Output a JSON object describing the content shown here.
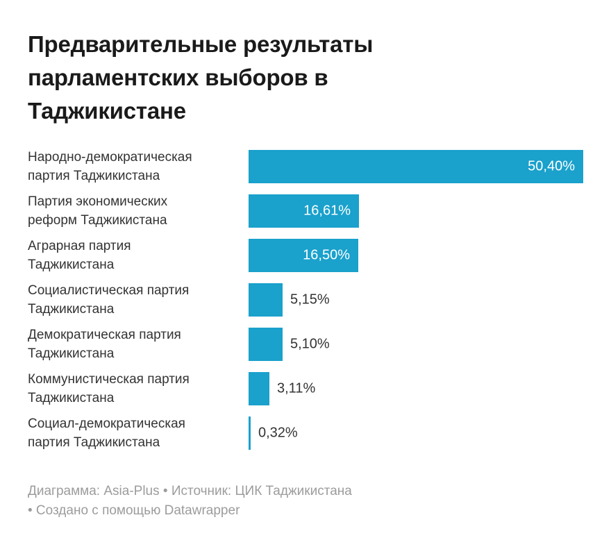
{
  "header": {
    "title_lines": [
      "Предварительные результаты",
      "парламентских выборов в",
      "Таджикистане"
    ]
  },
  "chart": {
    "rows": [
      {
        "name_lines": [
          "Народно-демократическая",
          "партия Таджикистана"
        ],
        "value_label": "50,40%",
        "label_inside": true
      },
      {
        "name_lines": [
          "Партия экономических",
          "реформ Таджикистана"
        ],
        "value_label": "16,61%",
        "label_inside": true
      },
      {
        "name_lines": [
          "Аграрная партия",
          "Таджикистана"
        ],
        "value_label": "16,50%",
        "label_inside": true
      },
      {
        "name_lines": [
          "Социалистическая партия",
          "Таджикистана"
        ],
        "value_label": "5,15%",
        "label_inside": false
      },
      {
        "name_lines": [
          "Демократическая партия",
          "Таджикистана"
        ],
        "value_label": "5,10%",
        "label_inside": false
      },
      {
        "name_lines": [
          "Коммунистическая партия",
          "Таджикистана"
        ],
        "value_label": "3,11%",
        "label_inside": false
      },
      {
        "name_lines": [
          "Социал-демократическая",
          "партия Таджикистана"
        ],
        "value_label": "0,32%",
        "label_inside": false
      }
    ]
  },
  "chart_data": {
    "type": "bar",
    "orientation": "horizontal",
    "title": "Предварительные результаты парламентских выборов в Таджикистане",
    "categories": [
      "Народно-демократическая партия Таджикистана",
      "Партия экономических реформ Таджикистана",
      "Аграрная партия Таджикистана",
      "Социалистическая партия Таджикистана",
      "Демократическая партия Таджикистана",
      "Коммунистическая партия Таджикистана",
      "Социал-демократическая партия Таджикистана"
    ],
    "values": [
      50.4,
      16.61,
      16.5,
      5.15,
      5.1,
      3.11,
      0.32
    ],
    "value_labels": [
      "50,40%",
      "16,61%",
      "16,50%",
      "5,15%",
      "5,10%",
      "3,11%",
      "0,32%"
    ],
    "unit": "%",
    "xlim": [
      0,
      50.4
    ],
    "grid": false,
    "legend": "none",
    "source_line": "Диаграмма: Asia-Plus • Источник: ЦИК Таджикистана • Создано с помощью Datawrapper"
  },
  "footer": {
    "lines": [
      "Диаграмма: Asia-Plus • Источник: ЦИК Таджикистана",
      "• Создано с помощью Datawrapper"
    ]
  },
  "colors": {
    "bar": "#1aa1cc",
    "title": "#1a1a1a",
    "label": "#333333",
    "value_inside": "#ffffff",
    "footer": "#9c9c9c",
    "background": "#ffffff"
  }
}
